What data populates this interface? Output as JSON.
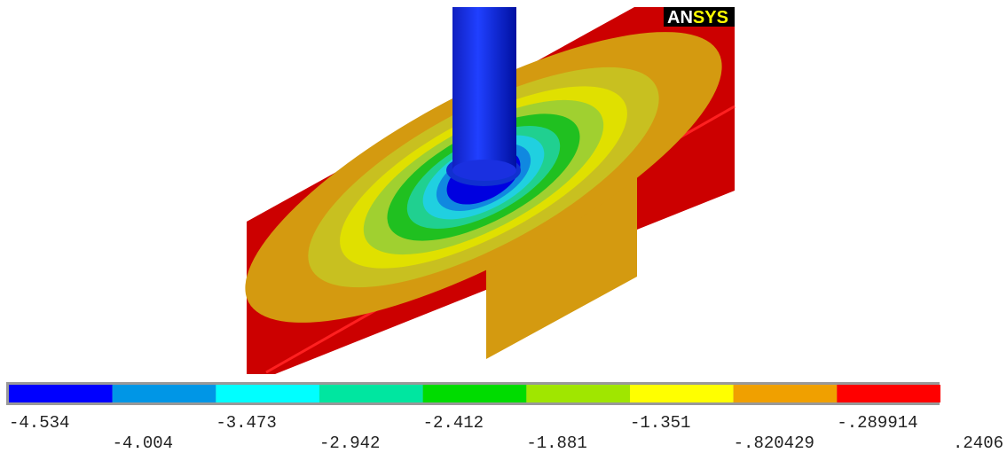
{
  "logo": {
    "an": "AN",
    "sys": "SYS"
  },
  "legend": {
    "colors": [
      "#0000ff",
      "#0096e6",
      "#00ffff",
      "#00e6a0",
      "#00dc00",
      "#a0e600",
      "#ffff00",
      "#f0a000",
      "#ff0000"
    ],
    "labels": [
      "-4.534",
      "-4.004",
      "-3.473",
      "-2.942",
      "-2.412",
      "-1.881",
      "-1.351",
      "-.820429",
      "-.289914",
      ".2406"
    ]
  }
}
